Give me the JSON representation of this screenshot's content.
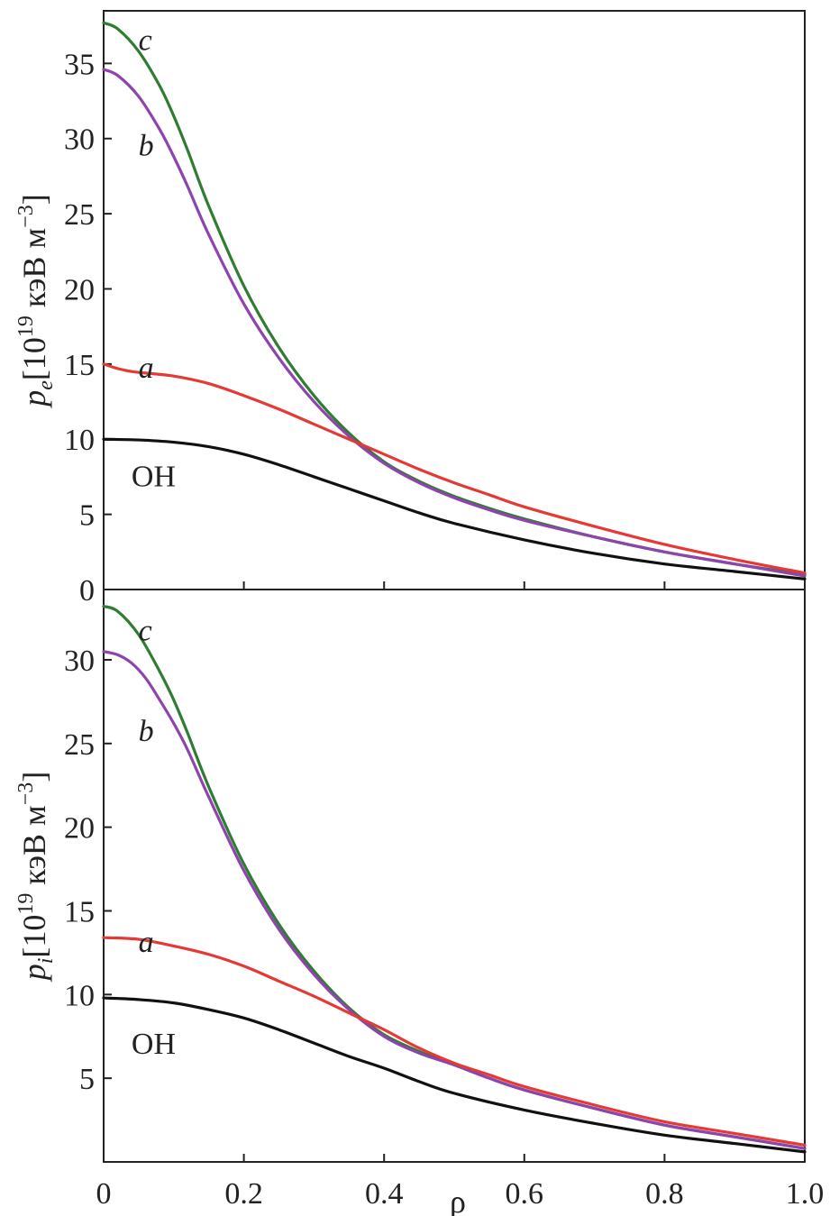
{
  "chart_data": [
    {
      "type": "line",
      "ylabel": {
        "symbol": "p",
        "sub": "e",
        "unit_prefix": "[10",
        "unit_exp": "19",
        "unit_mid": " кэВ м",
        "unit_exp2": "−3",
        "unit_suffix": "]"
      },
      "xlim": [
        0,
        1.0
      ],
      "ylim": [
        0,
        38.5
      ],
      "yticks": [
        0,
        5,
        10,
        15,
        20,
        25,
        30,
        35
      ],
      "ytick_labels": [
        "0",
        "5",
        "10",
        "15",
        "20",
        "25",
        "30",
        "35"
      ],
      "xticks": [
        0.2,
        0.4,
        0.6,
        0.8
      ],
      "series": [
        {
          "name": "c",
          "color": "#2e7d32",
          "x": [
            0,
            0.02,
            0.05,
            0.08,
            0.1,
            0.12,
            0.15,
            0.2,
            0.25,
            0.3,
            0.35,
            0.4,
            0.45,
            0.5,
            0.55,
            0.6,
            0.7,
            0.8,
            0.9,
            1.0
          ],
          "y": [
            37.7,
            37.3,
            35.8,
            33.5,
            31.5,
            29.2,
            25.5,
            20.2,
            16.1,
            12.9,
            10.4,
            8.5,
            7.2,
            6.2,
            5.4,
            4.7,
            3.5,
            2.5,
            1.7,
            1.0
          ]
        },
        {
          "name": "b",
          "color": "#8e44ad",
          "x": [
            0,
            0.02,
            0.05,
            0.08,
            0.1,
            0.12,
            0.15,
            0.2,
            0.25,
            0.3,
            0.35,
            0.4,
            0.45,
            0.5,
            0.55,
            0.6,
            0.7,
            0.8,
            0.9,
            1.0
          ],
          "y": [
            34.6,
            34.2,
            32.8,
            30.6,
            28.8,
            26.8,
            23.6,
            19.0,
            15.4,
            12.5,
            10.2,
            8.4,
            7.1,
            6.1,
            5.3,
            4.6,
            3.5,
            2.5,
            1.7,
            0.9
          ]
        },
        {
          "name": "a",
          "color": "#e53935",
          "x": [
            0,
            0.02,
            0.04,
            0.06,
            0.1,
            0.15,
            0.2,
            0.25,
            0.3,
            0.35,
            0.4,
            0.45,
            0.5,
            0.55,
            0.6,
            0.7,
            0.8,
            0.9,
            1.0
          ],
          "y": [
            15.0,
            14.7,
            14.5,
            14.4,
            14.2,
            13.7,
            12.9,
            12.0,
            11.0,
            10.0,
            9.0,
            8.0,
            7.1,
            6.3,
            5.5,
            4.2,
            3.0,
            2.0,
            1.1
          ]
        },
        {
          "name": "OH",
          "color": "#111111",
          "x": [
            0,
            0.05,
            0.1,
            0.15,
            0.2,
            0.25,
            0.3,
            0.35,
            0.4,
            0.45,
            0.5,
            0.6,
            0.7,
            0.8,
            0.9,
            1.0
          ],
          "y": [
            10.0,
            9.95,
            9.8,
            9.5,
            9.0,
            8.3,
            7.5,
            6.7,
            5.9,
            5.1,
            4.4,
            3.3,
            2.4,
            1.7,
            1.2,
            0.7
          ]
        }
      ],
      "curve_labels": [
        {
          "text": "c",
          "x": 0.06,
          "y": 36.6
        },
        {
          "text": "b",
          "x": 0.06,
          "y": 29.6
        },
        {
          "text": "a",
          "x": 0.06,
          "y": 14.8
        },
        {
          "text": "OH",
          "x": 0.05,
          "y": 7.6
        }
      ]
    },
    {
      "type": "line",
      "ylabel": {
        "symbol": "p",
        "sub": "i",
        "unit_prefix": "[10",
        "unit_exp": "19",
        "unit_mid": " кэВ м",
        "unit_exp2": "−3",
        "unit_suffix": "]"
      },
      "xlabel": "ρ",
      "xlim": [
        0,
        1.0
      ],
      "ylim": [
        0,
        34.2
      ],
      "yticks": [
        5,
        10,
        15,
        20,
        25,
        30
      ],
      "ytick_labels": [
        "5",
        "10",
        "15",
        "20",
        "25",
        "30"
      ],
      "xticks": [
        0,
        0.2,
        0.4,
        0.6,
        0.8,
        1.0
      ],
      "xtick_labels": [
        "0",
        "0.2",
        "0.4",
        "0.6",
        "0.8",
        "1.0"
      ],
      "series": [
        {
          "name": "c",
          "color": "#2e7d32",
          "x": [
            0,
            0.02,
            0.05,
            0.08,
            0.1,
            0.12,
            0.15,
            0.2,
            0.25,
            0.3,
            0.35,
            0.4,
            0.45,
            0.5,
            0.55,
            0.6,
            0.7,
            0.8,
            0.9,
            1.0
          ],
          "y": [
            33.2,
            32.9,
            31.5,
            29.3,
            27.6,
            25.6,
            22.4,
            17.8,
            14.2,
            11.4,
            9.2,
            7.6,
            6.6,
            5.8,
            5.0,
            4.3,
            3.2,
            2.2,
            1.5,
            0.8
          ]
        },
        {
          "name": "b",
          "color": "#8e44ad",
          "x": [
            0,
            0.02,
            0.04,
            0.06,
            0.08,
            0.1,
            0.12,
            0.15,
            0.2,
            0.25,
            0.3,
            0.35,
            0.4,
            0.45,
            0.5,
            0.55,
            0.6,
            0.7,
            0.8,
            0.9,
            1.0
          ],
          "y": [
            30.5,
            30.3,
            29.8,
            28.9,
            27.6,
            26.2,
            24.6,
            21.8,
            17.4,
            13.9,
            11.2,
            9.1,
            7.5,
            6.5,
            5.8,
            5.0,
            4.3,
            3.2,
            2.2,
            1.5,
            0.8
          ]
        },
        {
          "name": "a",
          "color": "#e53935",
          "x": [
            0,
            0.05,
            0.1,
            0.15,
            0.2,
            0.25,
            0.3,
            0.35,
            0.4,
            0.45,
            0.5,
            0.55,
            0.6,
            0.7,
            0.8,
            0.9,
            1.0
          ],
          "y": [
            13.4,
            13.3,
            12.9,
            12.4,
            11.7,
            10.8,
            9.9,
            8.9,
            7.9,
            6.8,
            5.9,
            5.2,
            4.5,
            3.4,
            2.4,
            1.7,
            1.0
          ]
        },
        {
          "name": "OH",
          "color": "#111111",
          "x": [
            0,
            0.05,
            0.1,
            0.15,
            0.2,
            0.25,
            0.3,
            0.35,
            0.4,
            0.45,
            0.5,
            0.6,
            0.7,
            0.8,
            0.9,
            1.0
          ],
          "y": [
            9.8,
            9.7,
            9.5,
            9.1,
            8.6,
            7.9,
            7.1,
            6.3,
            5.6,
            4.8,
            4.1,
            3.1,
            2.3,
            1.6,
            1.1,
            0.6
          ]
        }
      ],
      "curve_labels": [
        {
          "text": "c",
          "x": 0.06,
          "y": 31.8
        },
        {
          "text": "b",
          "x": 0.06,
          "y": 25.8
        },
        {
          "text": "a",
          "x": 0.06,
          "y": 13.2
        },
        {
          "text": "OH",
          "x": 0.05,
          "y": 7.1
        }
      ]
    }
  ]
}
